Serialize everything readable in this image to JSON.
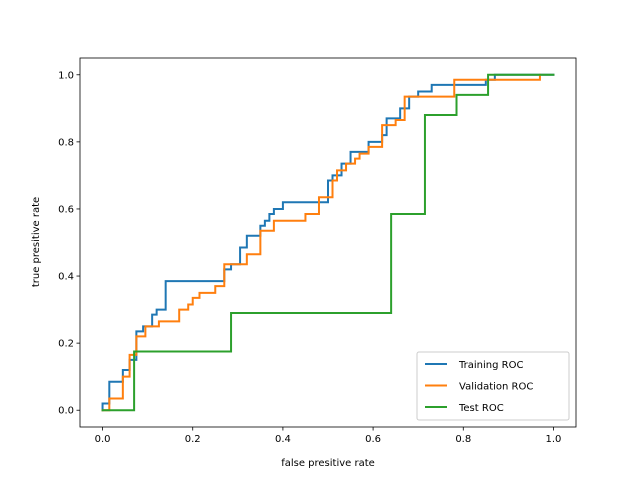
{
  "chart_data": {
    "type": "line",
    "title": "",
    "xlabel": "false presitive rate",
    "ylabel": "true presitive rate",
    "xlim": [
      -0.05,
      1.05
    ],
    "ylim": [
      -0.05,
      1.05
    ],
    "xticks": [
      0.0,
      0.2,
      0.4,
      0.6,
      0.8,
      1.0
    ],
    "yticks": [
      0.0,
      0.2,
      0.4,
      0.6,
      0.8,
      1.0
    ],
    "xtick_labels": [
      "0.0",
      "0.2",
      "0.4",
      "0.6",
      "0.8",
      "1.0"
    ],
    "ytick_labels": [
      "0.0",
      "0.2",
      "0.4",
      "0.6",
      "0.8",
      "1.0"
    ],
    "grid": false,
    "legend_position": "lower right",
    "series": [
      {
        "name": "Training ROC",
        "color": "#1f77b4",
        "x": [
          0.0,
          0.0,
          0.015,
          0.015,
          0.045,
          0.045,
          0.06,
          0.06,
          0.075,
          0.075,
          0.09,
          0.09,
          0.1,
          0.1,
          0.11,
          0.11,
          0.12,
          0.12,
          0.14,
          0.14,
          0.27,
          0.27,
          0.285,
          0.285,
          0.305,
          0.305,
          0.32,
          0.32,
          0.35,
          0.35,
          0.36,
          0.36,
          0.37,
          0.37,
          0.38,
          0.38,
          0.39,
          0.39,
          0.4,
          0.4,
          0.41,
          0.41,
          0.5,
          0.5,
          0.51,
          0.51,
          0.53,
          0.53,
          0.55,
          0.55,
          0.59,
          0.59,
          0.62,
          0.62,
          0.63,
          0.63,
          0.66,
          0.66,
          0.68,
          0.68,
          0.7,
          0.7,
          0.73,
          0.73,
          0.78,
          0.78,
          0.85,
          0.85,
          0.87,
          0.87,
          0.95,
          0.95,
          1.0
        ],
        "y": [
          0.0,
          0.02,
          0.02,
          0.085,
          0.085,
          0.12,
          0.12,
          0.15,
          0.15,
          0.235,
          0.235,
          0.25,
          0.25,
          0.25,
          0.25,
          0.285,
          0.285,
          0.3,
          0.3,
          0.385,
          0.385,
          0.42,
          0.42,
          0.435,
          0.435,
          0.485,
          0.485,
          0.52,
          0.52,
          0.55,
          0.55,
          0.565,
          0.565,
          0.585,
          0.585,
          0.6,
          0.6,
          0.6,
          0.6,
          0.62,
          0.62,
          0.62,
          0.62,
          0.685,
          0.685,
          0.7,
          0.7,
          0.735,
          0.735,
          0.77,
          0.77,
          0.8,
          0.8,
          0.82,
          0.82,
          0.87,
          0.87,
          0.9,
          0.9,
          0.935,
          0.935,
          0.95,
          0.95,
          0.97,
          0.97,
          0.97,
          0.97,
          0.985,
          0.985,
          1.0,
          1.0,
          1.0,
          1.0
        ]
      },
      {
        "name": "Validation ROC",
        "color": "#ff7f0e",
        "x": [
          0.0,
          0.0,
          0.015,
          0.015,
          0.045,
          0.045,
          0.06,
          0.06,
          0.075,
          0.075,
          0.085,
          0.085,
          0.095,
          0.095,
          0.125,
          0.125,
          0.17,
          0.17,
          0.19,
          0.19,
          0.2,
          0.2,
          0.215,
          0.215,
          0.25,
          0.25,
          0.27,
          0.27,
          0.3,
          0.3,
          0.32,
          0.32,
          0.35,
          0.35,
          0.38,
          0.38,
          0.45,
          0.45,
          0.48,
          0.48,
          0.51,
          0.51,
          0.52,
          0.52,
          0.54,
          0.54,
          0.56,
          0.56,
          0.57,
          0.57,
          0.59,
          0.59,
          0.62,
          0.62,
          0.65,
          0.65,
          0.67,
          0.67,
          0.68,
          0.68,
          0.78,
          0.78,
          0.97,
          0.97
        ],
        "y": [
          0.0,
          0.0,
          0.0,
          0.035,
          0.035,
          0.1,
          0.1,
          0.165,
          0.165,
          0.22,
          0.22,
          0.22,
          0.22,
          0.25,
          0.25,
          0.265,
          0.265,
          0.3,
          0.3,
          0.315,
          0.315,
          0.335,
          0.335,
          0.35,
          0.35,
          0.37,
          0.37,
          0.435,
          0.435,
          0.435,
          0.435,
          0.465,
          0.465,
          0.535,
          0.535,
          0.565,
          0.565,
          0.585,
          0.585,
          0.635,
          0.635,
          0.685,
          0.685,
          0.715,
          0.715,
          0.735,
          0.735,
          0.75,
          0.75,
          0.765,
          0.765,
          0.785,
          0.785,
          0.85,
          0.85,
          0.865,
          0.865,
          0.935,
          0.935,
          0.935,
          0.935,
          0.985,
          0.985,
          1.0
        ]
      },
      {
        "name": "Test ROC",
        "color": "#2ca02c",
        "x": [
          0.0,
          0.07,
          0.07,
          0.285,
          0.285,
          0.64,
          0.64,
          0.715,
          0.715,
          0.785,
          0.785,
          0.855,
          0.855,
          1.0
        ],
        "y": [
          0.0,
          0.0,
          0.175,
          0.175,
          0.29,
          0.29,
          0.585,
          0.585,
          0.88,
          0.88,
          0.94,
          0.94,
          1.0,
          1.0
        ]
      }
    ]
  }
}
